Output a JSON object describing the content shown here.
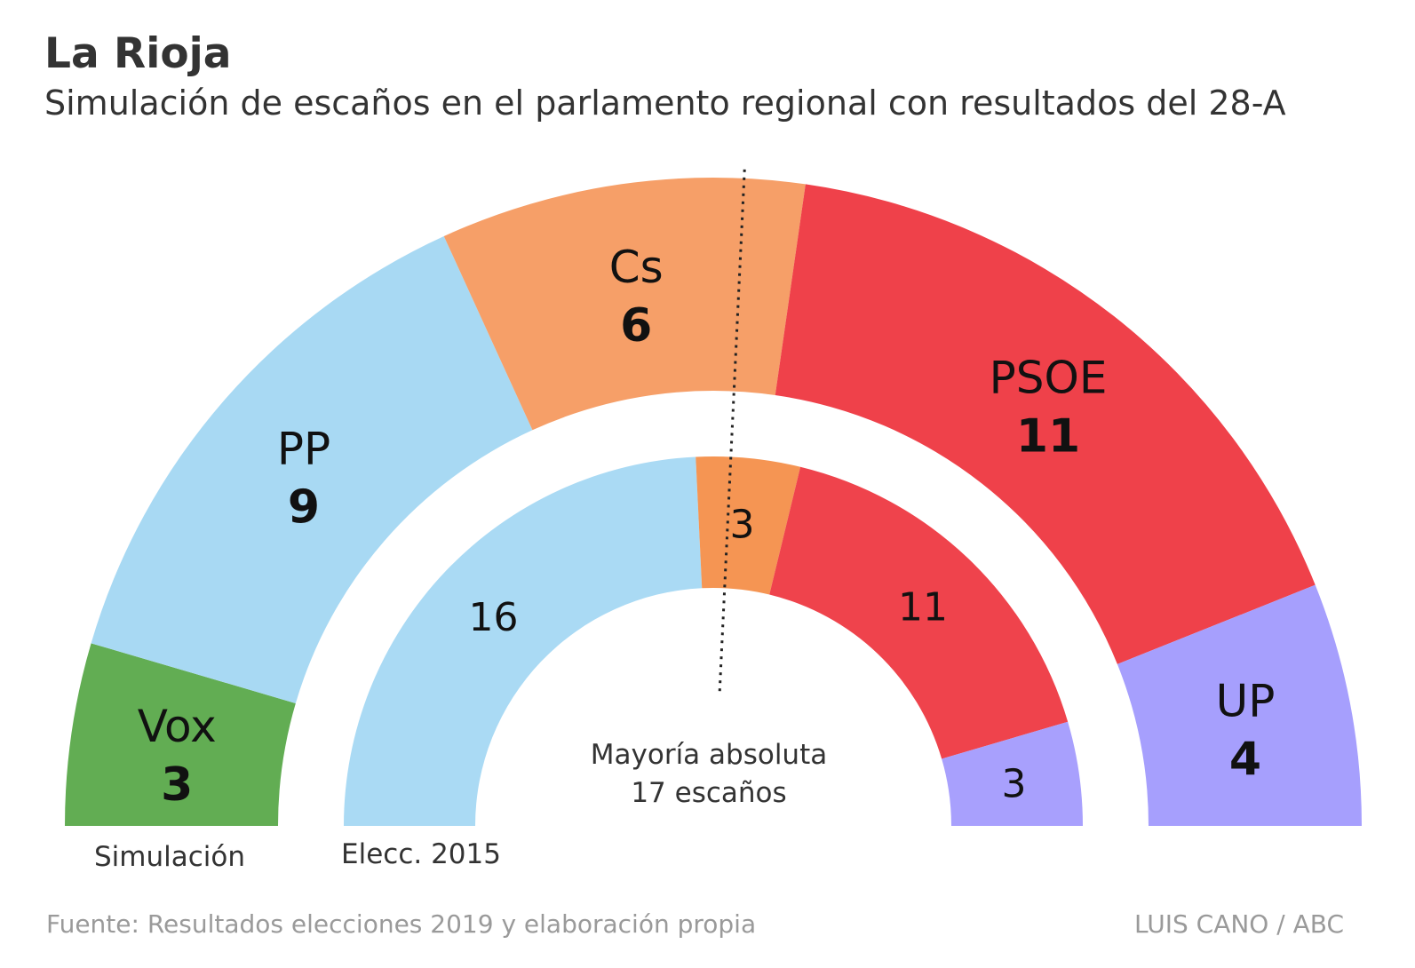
{
  "title": "La Rioja",
  "subtitle": "Simulación de escaños en el parlamento regional con resultados del 28-A",
  "chart_data": {
    "type": "pie",
    "variant": "parliament-semicircle",
    "total_seats": 33,
    "rings": [
      {
        "label": "Simulación",
        "segments": [
          {
            "party": "Vox",
            "seats": 3,
            "color": "#62ad53",
            "label": "Vox"
          },
          {
            "party": "PP",
            "seats": 9,
            "color": "#a8d9f3",
            "label": "PP"
          },
          {
            "party": "Cs",
            "seats": 6,
            "color": "#f69f68",
            "label": "Cs"
          },
          {
            "party": "PSOE",
            "seats": 11,
            "color": "#ef414a",
            "label": "PSOE"
          },
          {
            "party": "UP",
            "seats": 4,
            "color": "#a69ffd",
            "label": "UP"
          }
        ]
      },
      {
        "label": "Elecc. 2015",
        "segments": [
          {
            "party": "PP",
            "seats": 16,
            "color": "#aadaf4"
          },
          {
            "party": "Cs",
            "seats": 3,
            "color": "#f59553"
          },
          {
            "party": "PSOE",
            "seats": 11,
            "color": "#ef434c"
          },
          {
            "party": "UP",
            "seats": 3,
            "color": "#a8a0fd"
          }
        ]
      }
    ],
    "majority": {
      "seats": 17,
      "label_line1": "Mayoría absoluta",
      "label_line2": "17 escaños"
    }
  },
  "source": "Fuente: Resultados elecciones 2019 y elaboración propia",
  "credit": "LUIS CANO / ABC"
}
